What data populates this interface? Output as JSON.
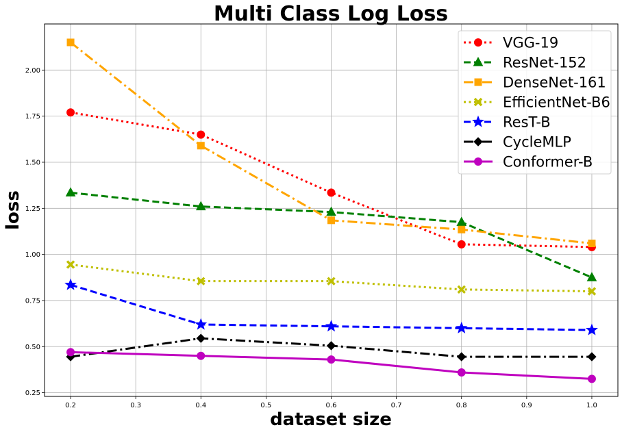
{
  "chart_data": {
    "type": "line",
    "title": "Multi Class Log Loss",
    "xlabel": "dataset size",
    "ylabel": "loss",
    "x": [
      0.2,
      0.4,
      0.6,
      0.8,
      1.0
    ],
    "xlim": [
      0.16,
      1.04
    ],
    "ylim": [
      0.23,
      2.25
    ],
    "xticks": [
      "0.2",
      "0.3",
      "0.4",
      "0.5",
      "0.6",
      "0.7",
      "0.8",
      "0.9",
      "1.0"
    ],
    "yticks": [
      "0.25",
      "0.50",
      "0.75",
      "1.00",
      "1.25",
      "1.50",
      "1.75",
      "2.00"
    ],
    "grid": true,
    "legend_position": "top-right",
    "series": [
      {
        "name": "VGG-19",
        "values": [
          1.77,
          1.65,
          1.335,
          1.055,
          1.04
        ],
        "color": "#ff0000",
        "dash": "dotted",
        "marker": "circle"
      },
      {
        "name": "ResNet-152",
        "values": [
          1.335,
          1.26,
          1.23,
          1.175,
          0.875
        ],
        "color": "#008000",
        "dash": "dashed",
        "marker": "triangle"
      },
      {
        "name": "DenseNet-161",
        "values": [
          2.15,
          1.59,
          1.185,
          1.135,
          1.06
        ],
        "color": "#ffa500",
        "dash": "dashdot",
        "marker": "square"
      },
      {
        "name": "EfficientNet-B6",
        "values": [
          0.945,
          0.855,
          0.855,
          0.81,
          0.8
        ],
        "color": "#bfbf00",
        "dash": "dotted",
        "marker": "x"
      },
      {
        "name": "ResT-B",
        "values": [
          0.835,
          0.62,
          0.61,
          0.6,
          0.59
        ],
        "color": "#0000ff",
        "dash": "dashed",
        "marker": "star"
      },
      {
        "name": "CycleMLP",
        "values": [
          0.445,
          0.545,
          0.505,
          0.445,
          0.445
        ],
        "color": "#000000",
        "dash": "dashdot",
        "marker": "diamond"
      },
      {
        "name": "Conformer-B",
        "values": [
          0.47,
          0.45,
          0.43,
          0.36,
          0.325
        ],
        "color": "#bf00bf",
        "dash": "solid",
        "marker": "circle"
      }
    ]
  }
}
